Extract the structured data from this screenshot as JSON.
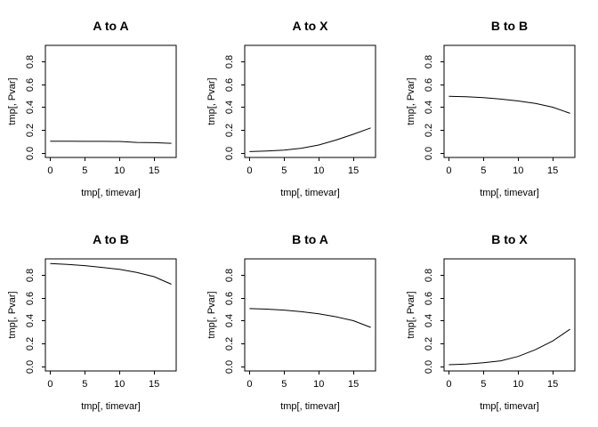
{
  "figure": {
    "background": "#ffffff",
    "foreground": "#000000",
    "layout": "2 rows x 3 columns of R base line plots"
  },
  "chart_data": [
    {
      "type": "line",
      "title": "A to A",
      "xlabel": "tmp[, timevar]",
      "ylabel": "tmp[, Pvar]",
      "x": [
        0,
        2.5,
        5,
        7.5,
        10,
        12.5,
        15,
        17.5
      ],
      "y": [
        0.105,
        0.105,
        0.104,
        0.104,
        0.103,
        0.094,
        0.092,
        0.087
      ],
      "xticks": [
        0,
        5,
        10,
        15
      ],
      "ytick_labels": [
        "0.0",
        "0.2",
        "0.4",
        "0.6",
        "0.8"
      ],
      "xlim": [
        -0.7,
        18.2
      ],
      "ylim": [
        -0.036,
        0.936
      ],
      "grid": false,
      "legend": null,
      "line_color": "#000000"
    },
    {
      "type": "line",
      "title": "A to X",
      "xlabel": "tmp[, timevar]",
      "ylabel": "tmp[, Pvar]",
      "x": [
        0,
        2.5,
        5,
        7.5,
        10,
        12.5,
        15,
        17.5
      ],
      "y": [
        0.015,
        0.02,
        0.028,
        0.044,
        0.072,
        0.115,
        0.165,
        0.22
      ],
      "xticks": [
        0,
        5,
        10,
        15
      ],
      "ytick_labels": [
        "0.0",
        "0.2",
        "0.4",
        "0.6",
        "0.8"
      ],
      "xlim": [
        -0.7,
        18.2
      ],
      "ylim": [
        -0.036,
        0.936
      ],
      "grid": false,
      "legend": null,
      "line_color": "#000000"
    },
    {
      "type": "line",
      "title": "B to B",
      "xlabel": "tmp[, timevar]",
      "ylabel": "tmp[, Pvar]",
      "x": [
        0,
        2.5,
        5,
        7.5,
        10,
        12.5,
        15,
        17.5
      ],
      "y": [
        0.494,
        0.491,
        0.483,
        0.47,
        0.454,
        0.432,
        0.4,
        0.347
      ],
      "xticks": [
        0,
        5,
        10,
        15
      ],
      "ytick_labels": [
        "0.0",
        "0.2",
        "0.4",
        "0.6",
        "0.8"
      ],
      "xlim": [
        -0.7,
        18.2
      ],
      "ylim": [
        -0.036,
        0.936
      ],
      "grid": false,
      "legend": null,
      "line_color": "#000000"
    },
    {
      "type": "line",
      "title": "A to B",
      "xlabel": "tmp[, timevar]",
      "ylabel": "tmp[, Pvar]",
      "x": [
        0,
        2.5,
        5,
        7.5,
        10,
        12.5,
        15,
        17.5
      ],
      "y": [
        0.896,
        0.888,
        0.877,
        0.862,
        0.845,
        0.818,
        0.782,
        0.716
      ],
      "xticks": [
        0,
        5,
        10,
        15
      ],
      "ytick_labels": [
        "0.0",
        "0.2",
        "0.4",
        "0.6",
        "0.8"
      ],
      "xlim": [
        -0.7,
        18.2
      ],
      "ylim": [
        -0.036,
        0.936
      ],
      "grid": false,
      "legend": null,
      "line_color": "#000000"
    },
    {
      "type": "line",
      "title": "B to A",
      "xlabel": "tmp[, timevar]",
      "ylabel": "tmp[, Pvar]",
      "x": [
        0,
        2.5,
        5,
        7.5,
        10,
        12.5,
        15,
        17.5
      ],
      "y": [
        0.505,
        0.5,
        0.492,
        0.478,
        0.459,
        0.434,
        0.4,
        0.342
      ],
      "xticks": [
        0,
        5,
        10,
        15
      ],
      "ytick_labels": [
        "0.0",
        "0.2",
        "0.4",
        "0.6",
        "0.8"
      ],
      "xlim": [
        -0.7,
        18.2
      ],
      "ylim": [
        -0.036,
        0.936
      ],
      "grid": false,
      "legend": null,
      "line_color": "#000000"
    },
    {
      "type": "line",
      "title": "B to X",
      "xlabel": "tmp[, timevar]",
      "ylabel": "tmp[, Pvar]",
      "x": [
        0,
        2.5,
        5,
        7.5,
        10,
        12.5,
        15,
        17.5
      ],
      "y": [
        0.018,
        0.024,
        0.036,
        0.052,
        0.09,
        0.148,
        0.224,
        0.326
      ],
      "xticks": [
        0,
        5,
        10,
        15
      ],
      "ytick_labels": [
        "0.0",
        "0.2",
        "0.4",
        "0.6",
        "0.8"
      ],
      "xlim": [
        -0.7,
        18.2
      ],
      "ylim": [
        -0.036,
        0.936
      ],
      "grid": false,
      "legend": null,
      "line_color": "#000000"
    }
  ]
}
